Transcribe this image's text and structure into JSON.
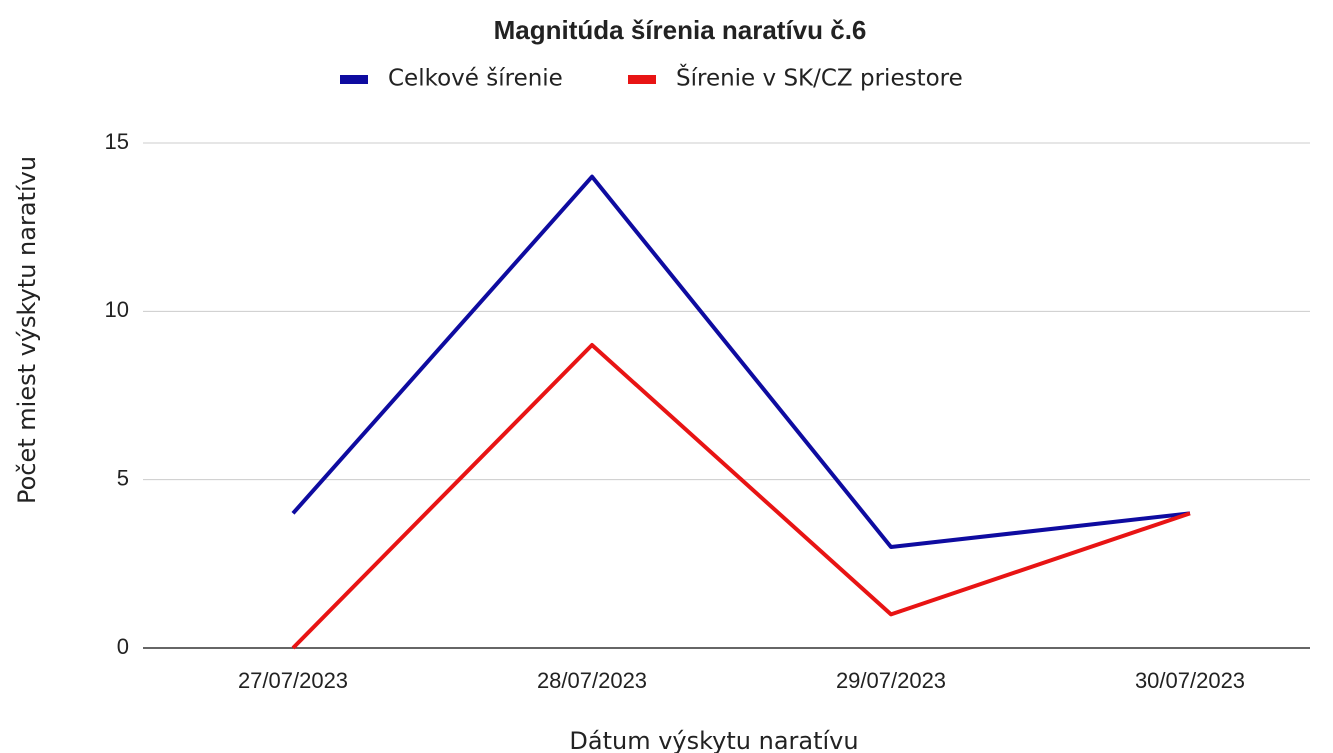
{
  "chart_data": {
    "type": "line",
    "title": "Magnitúda šírenia naratívu č.6",
    "categories": [
      "27/07/2023",
      "28/07/2023",
      "29/07/2023",
      "30/07/2023"
    ],
    "series": [
      {
        "name": "Celkové šírenie",
        "color": "#0e0ba0",
        "values": [
          4,
          14,
          3,
          4
        ]
      },
      {
        "name": "Šírenie v SK/CZ priestore",
        "color": "#e81414",
        "values": [
          0,
          9,
          1,
          4
        ]
      }
    ],
    "x_label": "Dátum výskytu naratívu",
    "y_label": "Počet miest výskytu naratívu",
    "ylim": [
      0,
      15
    ],
    "yticks": [
      0,
      5,
      10,
      15
    ],
    "grid": true
  }
}
